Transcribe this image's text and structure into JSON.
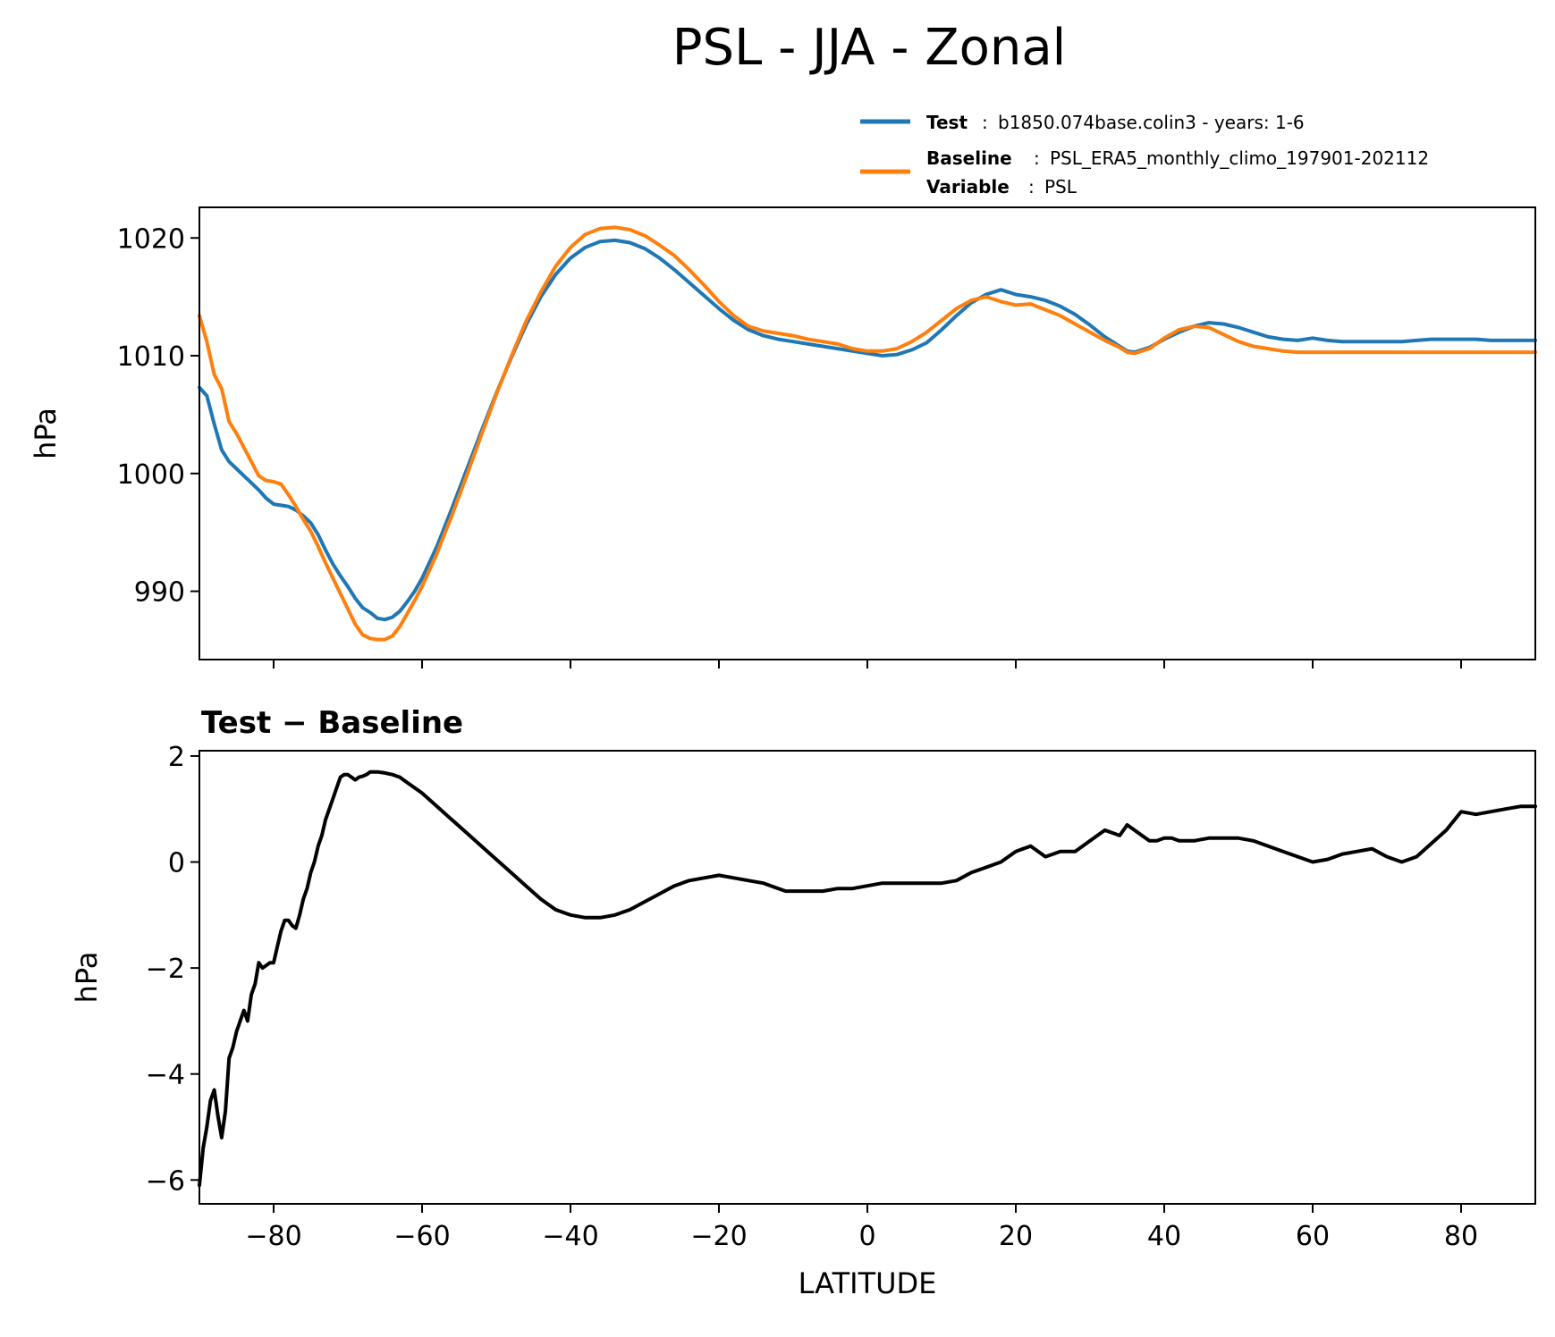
{
  "figure_title": "PSL - JJA - Zonal",
  "legend": {
    "test_key": "Test",
    "test_value": "b1850.074base.colin3 - years: 1-6",
    "baseline_key": "Baseline",
    "baseline_value": "PSL_ERA5_monthly_climo_197901-202112",
    "variable_key": "Variable",
    "variable_value": "PSL",
    "separator": ":"
  },
  "colors": {
    "test": "#1f77b4",
    "baseline": "#ff7f0e",
    "difference": "#000000"
  },
  "chart_data": [
    {
      "type": "line",
      "title": "",
      "xlabel": "",
      "ylabel": "hPa",
      "xlim": [
        -90,
        90
      ],
      "ylim": [
        984.2,
        1022.6
      ],
      "yticks": [
        990,
        1000,
        1010,
        1020
      ],
      "xticks": [
        -80,
        -60,
        -40,
        -20,
        0,
        20,
        40,
        60,
        80
      ],
      "show_xticklabels": false,
      "grid": false,
      "legend_position": "above-right",
      "series": [
        {
          "name": "Test",
          "color": "#1f77b4",
          "x": [
            -90,
            -89,
            -88,
            -87,
            -86,
            -85,
            -84,
            -83,
            -82,
            -81,
            -80,
            -79,
            -78,
            -77,
            -76,
            -75,
            -74,
            -73,
            -72,
            -71,
            -70,
            -69,
            -68,
            -67,
            -66,
            -65,
            -64,
            -63,
            -62,
            -61,
            -60,
            -58,
            -56,
            -54,
            -52,
            -50,
            -48,
            -46,
            -44,
            -42,
            -40,
            -38,
            -36,
            -34,
            -32,
            -30,
            -28,
            -26,
            -24,
            -22,
            -20,
            -18,
            -16,
            -14,
            -12,
            -10,
            -8,
            -6,
            -4,
            -2,
            0,
            2,
            4,
            6,
            8,
            10,
            12,
            14,
            16,
            18,
            20,
            22,
            24,
            26,
            28,
            30,
            32,
            34,
            35,
            36,
            38,
            40,
            42,
            44,
            46,
            48,
            50,
            52,
            54,
            56,
            58,
            60,
            62,
            64,
            66,
            68,
            70,
            72,
            74,
            76,
            78,
            80,
            82,
            84,
            86,
            88,
            90
          ],
          "values": [
            1007.3,
            1006.6,
            1004.2,
            1002.0,
            1001.0,
            1000.4,
            999.8,
            999.2,
            998.6,
            997.9,
            997.4,
            997.3,
            997.2,
            996.9,
            996.4,
            995.8,
            994.8,
            993.5,
            992.3,
            991.3,
            990.4,
            989.4,
            988.6,
            988.2,
            987.7,
            987.6,
            987.8,
            988.3,
            989.1,
            990.0,
            991.1,
            993.8,
            997.0,
            1000.3,
            1003.6,
            1006.8,
            1009.8,
            1012.6,
            1015.0,
            1016.9,
            1018.3,
            1019.2,
            1019.7,
            1019.8,
            1019.6,
            1019.1,
            1018.3,
            1017.3,
            1016.2,
            1015.1,
            1014.0,
            1013.0,
            1012.2,
            1011.7,
            1011.4,
            1011.2,
            1011.0,
            1010.8,
            1010.6,
            1010.4,
            1010.2,
            1010.0,
            1010.1,
            1010.5,
            1011.1,
            1012.2,
            1013.4,
            1014.5,
            1015.2,
            1015.6,
            1015.2,
            1015.0,
            1014.7,
            1014.2,
            1013.5,
            1012.6,
            1011.6,
            1010.8,
            1010.4,
            1010.3,
            1010.7,
            1011.4,
            1012.0,
            1012.5,
            1012.8,
            1012.7,
            1012.4,
            1012.0,
            1011.6,
            1011.4,
            1011.3,
            1011.5,
            1011.3,
            1011.2,
            1011.2,
            1011.2,
            1011.2,
            1011.2,
            1011.3,
            1011.4,
            1011.4,
            1011.4,
            1011.4,
            1011.3,
            1011.3,
            1011.3,
            1011.3
          ]
        },
        {
          "name": "Baseline",
          "color": "#ff7f0e",
          "x": [
            -90,
            -89,
            -88,
            -87,
            -86,
            -85,
            -84,
            -83,
            -82,
            -81,
            -80,
            -79,
            -78,
            -77,
            -76,
            -75,
            -74,
            -73,
            -72,
            -71,
            -70,
            -69,
            -68,
            -67,
            -66,
            -65,
            -64,
            -63,
            -62,
            -61,
            -60,
            -58,
            -56,
            -54,
            -52,
            -50,
            -48,
            -46,
            -44,
            -42,
            -40,
            -38,
            -36,
            -34,
            -32,
            -30,
            -28,
            -26,
            -24,
            -22,
            -20,
            -18,
            -16,
            -14,
            -12,
            -10,
            -8,
            -6,
            -4,
            -2,
            0,
            2,
            4,
            6,
            8,
            10,
            12,
            14,
            16,
            18,
            20,
            22,
            24,
            26,
            28,
            30,
            32,
            34,
            35,
            36,
            38,
            40,
            42,
            44,
            46,
            48,
            50,
            52,
            54,
            56,
            58,
            60,
            62,
            64,
            66,
            68,
            70,
            72,
            74,
            76,
            78,
            80,
            82,
            84,
            86,
            88,
            90
          ],
          "values": [
            1013.4,
            1011.2,
            1008.4,
            1007.2,
            1004.4,
            1003.4,
            1002.2,
            1001.0,
            999.8,
            999.4,
            999.3,
            999.1,
            998.2,
            997.2,
            996.1,
            995.1,
            993.8,
            992.4,
            991.1,
            989.8,
            988.5,
            987.2,
            986.3,
            986.0,
            985.9,
            985.9,
            986.2,
            987.0,
            988.1,
            989.2,
            990.4,
            993.2,
            996.4,
            999.8,
            1003.3,
            1006.7,
            1009.9,
            1012.9,
            1015.4,
            1017.6,
            1019.2,
            1020.3,
            1020.8,
            1020.9,
            1020.7,
            1020.2,
            1019.4,
            1018.5,
            1017.3,
            1016.0,
            1014.6,
            1013.4,
            1012.5,
            1012.1,
            1011.9,
            1011.7,
            1011.4,
            1011.2,
            1011.0,
            1010.6,
            1010.4,
            1010.4,
            1010.6,
            1011.2,
            1012.0,
            1013.0,
            1014.0,
            1014.7,
            1015.0,
            1014.6,
            1014.3,
            1014.4,
            1013.9,
            1013.4,
            1012.7,
            1012.0,
            1011.3,
            1010.7,
            1010.3,
            1010.2,
            1010.6,
            1011.5,
            1012.2,
            1012.5,
            1012.4,
            1011.8,
            1011.2,
            1010.8,
            1010.6,
            1010.4,
            1010.3,
            1010.3,
            1010.3,
            1010.3,
            1010.3,
            1010.3,
            1010.3,
            1010.3,
            1010.3,
            1010.3,
            1010.3,
            1010.3,
            1010.3,
            1010.3,
            1010.3,
            1010.3,
            1010.3
          ]
        }
      ]
    },
    {
      "type": "line",
      "title": "Test − Baseline",
      "xlabel": "LATITUDE",
      "ylabel": "hPa",
      "xlim": [
        -90,
        90
      ],
      "ylim": [
        -6.45,
        2.1
      ],
      "yticks": [
        -6,
        -4,
        -2,
        0,
        2
      ],
      "xticks": [
        -80,
        -60,
        -40,
        -20,
        0,
        20,
        40,
        60,
        80
      ],
      "show_xticklabels": true,
      "grid": false,
      "series": [
        {
          "name": "Test − Baseline",
          "color": "#000000",
          "x": [
            -90,
            -89.5,
            -89,
            -88.5,
            -88,
            -87.5,
            -87,
            -86.5,
            -86,
            -85.5,
            -85,
            -84.5,
            -84,
            -83.5,
            -83,
            -82.5,
            -82,
            -81.5,
            -81,
            -80.5,
            -80,
            -79.5,
            -79,
            -78.5,
            -78,
            -77.5,
            -77,
            -76.5,
            -76,
            -75.5,
            -75,
            -74.5,
            -74,
            -73.5,
            -73,
            -72.5,
            -72,
            -71.5,
            -71,
            -70.5,
            -70,
            -69.5,
            -69,
            -68.5,
            -68,
            -67.5,
            -67,
            -66.5,
            -66,
            -65,
            -64,
            -63,
            -62,
            -60,
            -58,
            -56,
            -54,
            -52,
            -50,
            -48,
            -46,
            -44,
            -42,
            -40,
            -38,
            -36,
            -34,
            -32,
            -30,
            -28,
            -26,
            -24,
            -22,
            -20,
            -18,
            -16,
            -14,
            -13,
            -12,
            -11,
            -10,
            -8,
            -6,
            -4,
            -2,
            0,
            2,
            4,
            6,
            8,
            10,
            12,
            14,
            16,
            18,
            20,
            22,
            24,
            26,
            28,
            30,
            32,
            34,
            35,
            36,
            37,
            38,
            39,
            40,
            41,
            42,
            44,
            46,
            48,
            50,
            52,
            54,
            56,
            58,
            60,
            62,
            64,
            66,
            68,
            70,
            72,
            74,
            76,
            78,
            80,
            82,
            84,
            86,
            88,
            90
          ],
          "values": [
            -6.1,
            -5.4,
            -5.0,
            -4.5,
            -4.3,
            -4.8,
            -5.2,
            -4.7,
            -3.7,
            -3.5,
            -3.2,
            -3.0,
            -2.8,
            -3.0,
            -2.5,
            -2.3,
            -1.9,
            -2.0,
            -1.95,
            -1.9,
            -1.9,
            -1.6,
            -1.3,
            -1.1,
            -1.1,
            -1.2,
            -1.25,
            -1.0,
            -0.7,
            -0.5,
            -0.2,
            0.0,
            0.3,
            0.5,
            0.8,
            1.0,
            1.2,
            1.4,
            1.6,
            1.65,
            1.65,
            1.6,
            1.55,
            1.6,
            1.62,
            1.65,
            1.7,
            1.7,
            1.7,
            1.68,
            1.65,
            1.6,
            1.5,
            1.3,
            1.05,
            0.8,
            0.55,
            0.3,
            0.05,
            -0.2,
            -0.45,
            -0.7,
            -0.9,
            -1.0,
            -1.05,
            -1.05,
            -1.0,
            -0.9,
            -0.75,
            -0.6,
            -0.45,
            -0.35,
            -0.3,
            -0.25,
            -0.3,
            -0.35,
            -0.4,
            -0.45,
            -0.5,
            -0.55,
            -0.55,
            -0.55,
            -0.55,
            -0.5,
            -0.5,
            -0.45,
            -0.4,
            -0.4,
            -0.4,
            -0.4,
            -0.4,
            -0.35,
            -0.2,
            -0.1,
            0.0,
            0.2,
            0.3,
            0.1,
            0.2,
            0.2,
            0.4,
            0.6,
            0.5,
            0.7,
            0.6,
            0.5,
            0.4,
            0.4,
            0.45,
            0.45,
            0.4,
            0.4,
            0.45,
            0.45,
            0.45,
            0.4,
            0.3,
            0.2,
            0.1,
            0.0,
            0.05,
            0.15,
            0.2,
            0.25,
            0.1,
            0.0,
            0.1,
            0.35,
            0.6,
            0.95,
            0.9,
            0.95,
            1.0,
            1.05,
            1.05
          ]
        }
      ]
    }
  ]
}
